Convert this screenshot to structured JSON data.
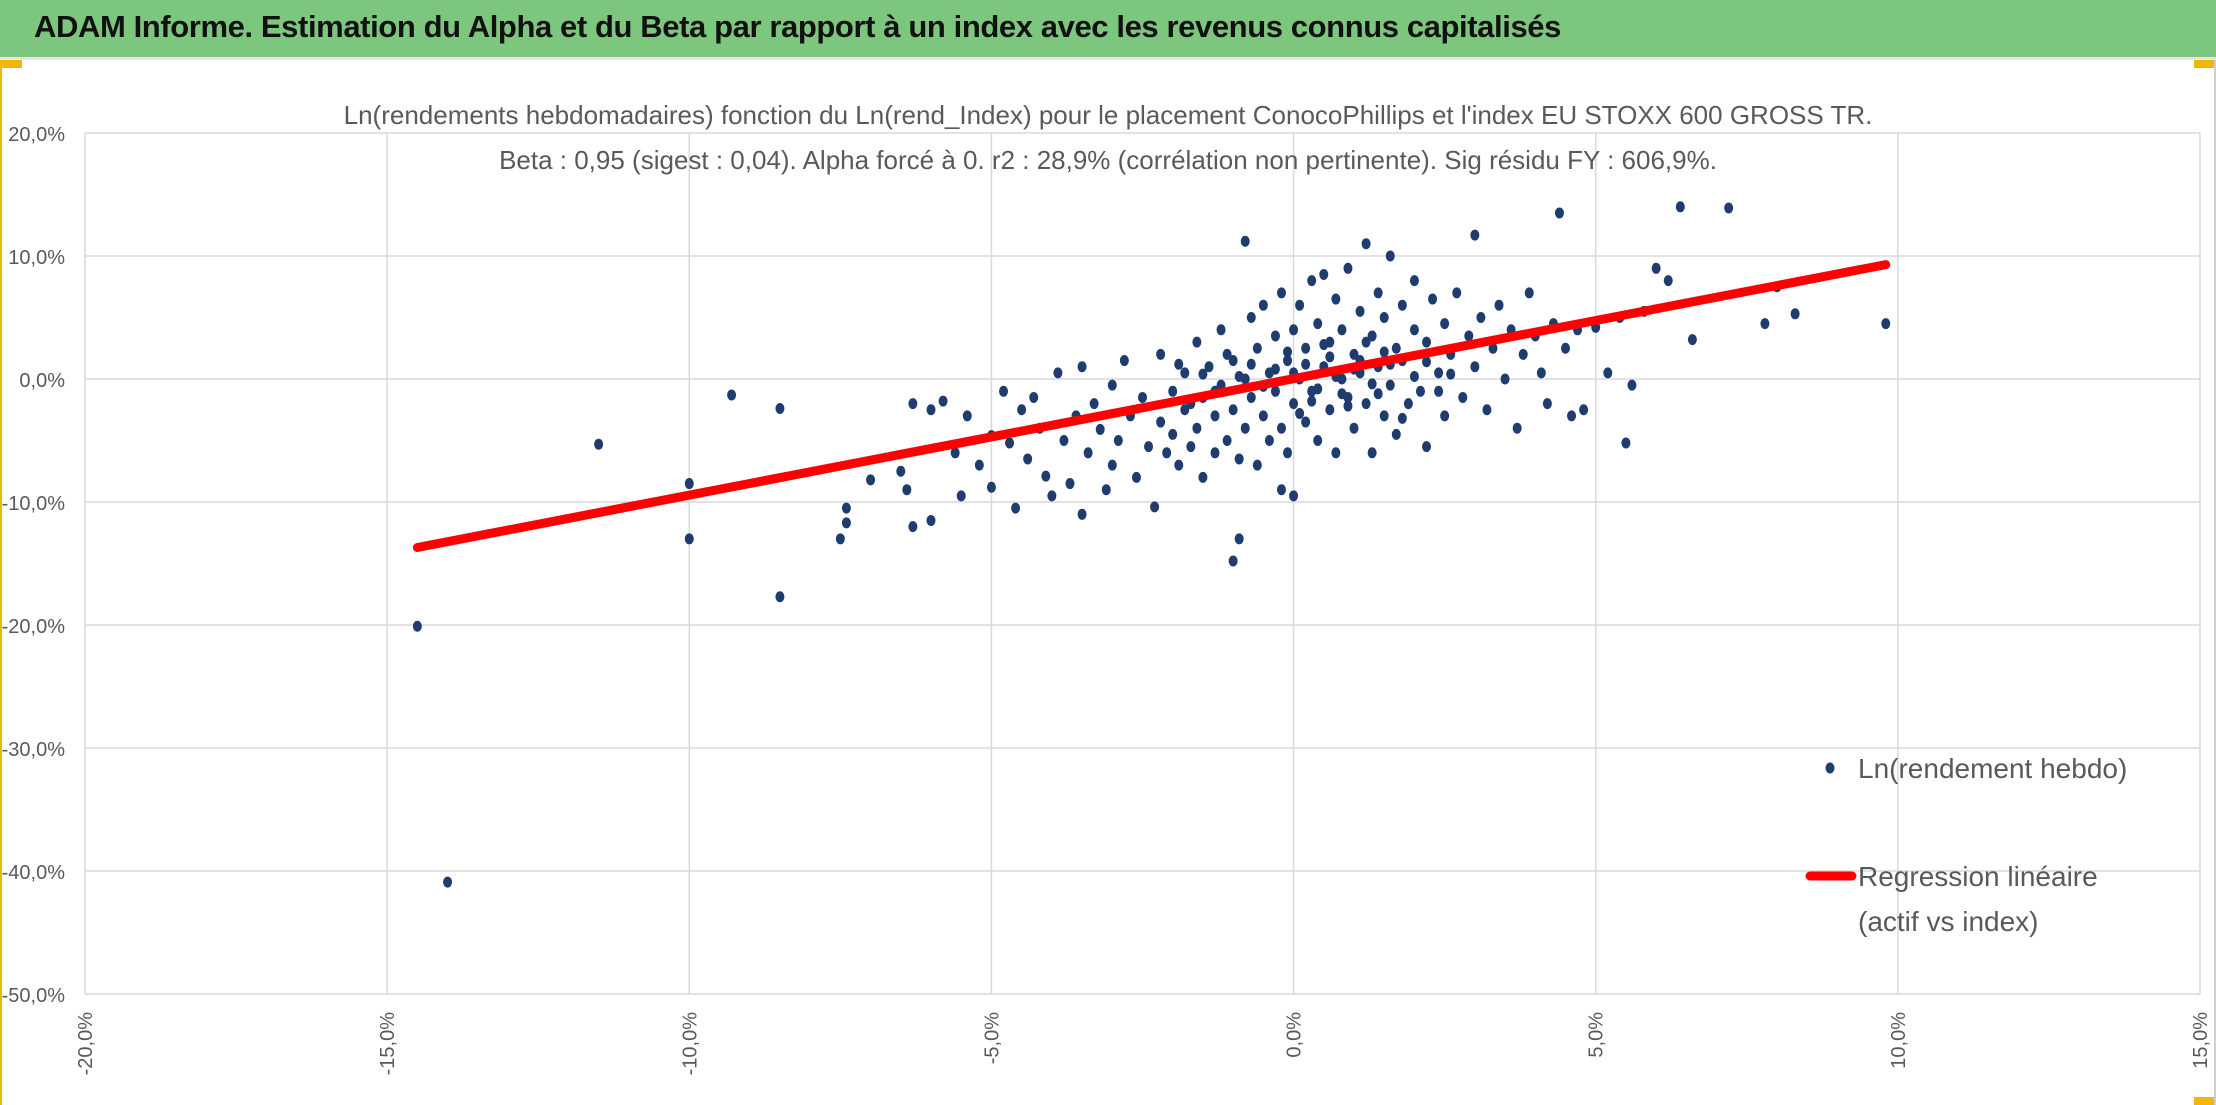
{
  "header": {
    "title": "ADAM Informe. Estimation du Alpha et du Beta par rapport à un index avec les revenus connus capitalisés"
  },
  "colors": {
    "banner": "#7dc67d",
    "accent": "#f2b705",
    "points": "#1f3c6e",
    "regression": "#ff0000",
    "grid": "#d9d9d9",
    "text": "#595959"
  },
  "chart_data": {
    "type": "scatter",
    "title": "Ln(rendements hebdomadaires) fonction du Ln(rend_Index) pour le placement ConocoPhillips et l'index EU STOXX 600 GROSS TR.",
    "subtitle": "Beta : 0,95 (sigest : 0,04). Alpha forcé à 0. r2 : 28,9% (corrélation non pertinente). Sig résidu FY : 606,9%.",
    "xlabel": "",
    "ylabel": "",
    "xlim": [
      -0.2,
      0.15
    ],
    "ylim": [
      -0.5,
      0.2
    ],
    "x_ticks": [
      -0.2,
      -0.15,
      -0.1,
      -0.05,
      0.0,
      0.05,
      0.1,
      0.15
    ],
    "x_tick_labels": [
      "-20,0%",
      "-15,0%",
      "-10,0%",
      "-5,0%",
      "0,0%",
      "5,0%",
      "10,0%",
      "15,0%"
    ],
    "y_ticks": [
      0.2,
      0.1,
      0.0,
      -0.1,
      -0.2,
      -0.3,
      -0.4,
      -0.5
    ],
    "y_tick_labels": [
      "20,0%",
      "10,0%",
      "0,0%",
      "-10,0%",
      "-20,0%",
      "-30,0%",
      "-40,0%",
      "-50,0%"
    ],
    "grid": true,
    "legend_position": "right",
    "series": [
      {
        "name": "Ln(rendement hebdo)",
        "kind": "points",
        "points": [
          [
            -0.145,
            -0.201
          ],
          [
            -0.14,
            -0.409
          ],
          [
            -0.115,
            -0.053
          ],
          [
            -0.1,
            -0.085
          ],
          [
            -0.1,
            -0.13
          ],
          [
            -0.093,
            -0.013
          ],
          [
            -0.085,
            -0.024
          ],
          [
            -0.085,
            -0.177
          ],
          [
            -0.075,
            -0.13
          ],
          [
            -0.074,
            -0.105
          ],
          [
            -0.074,
            -0.117
          ],
          [
            -0.07,
            -0.082
          ],
          [
            -0.065,
            -0.075
          ],
          [
            -0.064,
            -0.09
          ],
          [
            -0.063,
            -0.12
          ],
          [
            -0.063,
            -0.02
          ],
          [
            -0.06,
            -0.025
          ],
          [
            -0.06,
            -0.115
          ],
          [
            -0.058,
            -0.018
          ],
          [
            -0.056,
            -0.06
          ],
          [
            -0.055,
            -0.095
          ],
          [
            -0.054,
            -0.03
          ],
          [
            -0.052,
            -0.07
          ],
          [
            -0.05,
            -0.046
          ],
          [
            -0.05,
            -0.088
          ],
          [
            -0.048,
            -0.01
          ],
          [
            -0.047,
            -0.052
          ],
          [
            -0.046,
            -0.105
          ],
          [
            -0.045,
            -0.025
          ],
          [
            -0.044,
            -0.065
          ],
          [
            -0.043,
            -0.015
          ],
          [
            -0.042,
            -0.04
          ],
          [
            -0.041,
            -0.079
          ],
          [
            -0.04,
            -0.095
          ],
          [
            -0.039,
            0.005
          ],
          [
            -0.038,
            -0.05
          ],
          [
            -0.037,
            -0.085
          ],
          [
            -0.036,
            -0.03
          ],
          [
            -0.035,
            0.01
          ],
          [
            -0.035,
            -0.11
          ],
          [
            -0.034,
            -0.06
          ],
          [
            -0.033,
            -0.02
          ],
          [
            -0.032,
            -0.041
          ],
          [
            -0.031,
            -0.09
          ],
          [
            -0.03,
            -0.005
          ],
          [
            -0.03,
            -0.07
          ],
          [
            -0.029,
            -0.05
          ],
          [
            -0.028,
            0.015
          ],
          [
            -0.027,
            -0.03
          ],
          [
            -0.026,
            -0.08
          ],
          [
            -0.025,
            -0.015
          ],
          [
            -0.024,
            -0.055
          ],
          [
            -0.023,
            -0.104
          ],
          [
            -0.022,
            0.02
          ],
          [
            -0.022,
            -0.035
          ],
          [
            -0.021,
            -0.06
          ],
          [
            -0.02,
            -0.01
          ],
          [
            -0.02,
            -0.045
          ],
          [
            -0.019,
            -0.07
          ],
          [
            -0.018,
            0.005
          ],
          [
            -0.018,
            -0.025
          ],
          [
            -0.017,
            -0.055
          ],
          [
            -0.016,
            0.03
          ],
          [
            -0.016,
            -0.04
          ],
          [
            -0.015,
            -0.015
          ],
          [
            -0.015,
            -0.08
          ],
          [
            -0.014,
            0.01
          ],
          [
            -0.013,
            -0.03
          ],
          [
            -0.013,
            -0.06
          ],
          [
            -0.012,
            0.04
          ],
          [
            -0.012,
            -0.005
          ],
          [
            -0.011,
            -0.05
          ],
          [
            -0.01,
            -0.148
          ],
          [
            -0.01,
            0.015
          ],
          [
            -0.01,
            -0.025
          ],
          [
            -0.009,
            -0.13
          ],
          [
            -0.009,
            -0.065
          ],
          [
            -0.008,
            0.112
          ],
          [
            -0.008,
            0.0
          ],
          [
            -0.008,
            -0.04
          ],
          [
            -0.007,
            0.05
          ],
          [
            -0.007,
            -0.015
          ],
          [
            -0.006,
            0.025
          ],
          [
            -0.006,
            -0.07
          ],
          [
            -0.005,
            -0.03
          ],
          [
            -0.005,
            0.06
          ],
          [
            -0.004,
            0.005
          ],
          [
            -0.004,
            -0.05
          ],
          [
            -0.003,
            0.035
          ],
          [
            -0.003,
            -0.01
          ],
          [
            -0.002,
            -0.09
          ],
          [
            -0.002,
            0.07
          ],
          [
            -0.002,
            -0.04
          ],
          [
            -0.001,
            0.015
          ],
          [
            -0.001,
            -0.06
          ],
          [
            0.0,
            0.04
          ],
          [
            0.0,
            -0.02
          ],
          [
            0.0,
            -0.095
          ],
          [
            0.001,
            0.06
          ],
          [
            0.001,
            0.0
          ],
          [
            0.002,
            -0.035
          ],
          [
            0.002,
            0.025
          ],
          [
            0.003,
            0.08
          ],
          [
            0.003,
            -0.01
          ],
          [
            0.004,
            0.045
          ],
          [
            0.004,
            -0.05
          ],
          [
            0.005,
            0.01
          ],
          [
            0.005,
            0.085
          ],
          [
            0.006,
            -0.025
          ],
          [
            0.006,
            0.03
          ],
          [
            0.007,
            0.065
          ],
          [
            0.007,
            -0.06
          ],
          [
            0.008,
            0.0
          ],
          [
            0.008,
            0.04
          ],
          [
            0.009,
            -0.015
          ],
          [
            0.009,
            0.09
          ],
          [
            0.01,
            0.02
          ],
          [
            0.01,
            -0.04
          ],
          [
            0.011,
            0.055
          ],
          [
            0.011,
            0.005
          ],
          [
            0.012,
            0.11
          ],
          [
            0.012,
            -0.02
          ],
          [
            0.013,
            0.035
          ],
          [
            0.013,
            -0.06
          ],
          [
            0.014,
            0.07
          ],
          [
            0.014,
            0.01
          ],
          [
            0.015,
            -0.03
          ],
          [
            0.015,
            0.05
          ],
          [
            0.016,
            0.1
          ],
          [
            0.016,
            -0.005
          ],
          [
            0.017,
            0.025
          ],
          [
            0.017,
            -0.045
          ],
          [
            0.018,
            0.06
          ],
          [
            0.018,
            0.015
          ],
          [
            0.019,
            -0.02
          ],
          [
            0.02,
            0.04
          ],
          [
            0.02,
            0.08
          ],
          [
            0.021,
            -0.01
          ],
          [
            0.022,
            0.03
          ],
          [
            0.022,
            -0.055
          ],
          [
            0.023,
            0.065
          ],
          [
            0.024,
            0.005
          ],
          [
            0.025,
            0.045
          ],
          [
            0.025,
            -0.03
          ],
          [
            0.026,
            0.02
          ],
          [
            0.027,
            0.07
          ],
          [
            0.028,
            -0.015
          ],
          [
            0.029,
            0.035
          ],
          [
            0.03,
            0.117
          ],
          [
            0.03,
            0.01
          ],
          [
            0.031,
            0.05
          ],
          [
            0.032,
            -0.025
          ],
          [
            0.033,
            0.025
          ],
          [
            0.034,
            0.06
          ],
          [
            0.035,
            0.0
          ],
          [
            0.036,
            0.04
          ],
          [
            0.037,
            -0.04
          ],
          [
            0.038,
            0.02
          ],
          [
            0.039,
            0.07
          ],
          [
            0.04,
            0.035
          ],
          [
            0.041,
            0.005
          ],
          [
            0.042,
            -0.02
          ],
          [
            0.043,
            0.045
          ],
          [
            0.044,
            0.135
          ],
          [
            0.045,
            0.025
          ],
          [
            0.046,
            -0.03
          ],
          [
            0.047,
            0.04
          ],
          [
            0.048,
            -0.025
          ],
          [
            0.05,
            0.042
          ],
          [
            0.052,
            0.005
          ],
          [
            0.054,
            0.05
          ],
          [
            0.055,
            -0.052
          ],
          [
            0.056,
            -0.005
          ],
          [
            0.058,
            0.055
          ],
          [
            0.06,
            0.09
          ],
          [
            0.062,
            0.08
          ],
          [
            0.064,
            0.14
          ],
          [
            0.066,
            0.032
          ],
          [
            0.072,
            0.139
          ],
          [
            0.078,
            0.045
          ],
          [
            0.08,
            0.075
          ],
          [
            0.083,
            0.053
          ],
          [
            0.098,
            0.045
          ],
          [
            0.0,
            0.005
          ],
          [
            0.002,
            0.012
          ],
          [
            0.004,
            -0.008
          ],
          [
            0.006,
            0.018
          ],
          [
            0.008,
            -0.012
          ],
          [
            0.01,
            0.008
          ],
          [
            -0.001,
            0.022
          ],
          [
            0.003,
            -0.018
          ],
          [
            0.005,
            0.028
          ],
          [
            0.007,
            0.002
          ],
          [
            0.009,
            -0.022
          ],
          [
            0.011,
            0.015
          ],
          [
            0.013,
            -0.004
          ],
          [
            0.015,
            0.022
          ],
          [
            -0.003,
            0.008
          ],
          [
            -0.005,
            -0.006
          ],
          [
            -0.007,
            0.012
          ],
          [
            0.001,
            -0.028
          ],
          [
            0.012,
            0.03
          ],
          [
            0.014,
            -0.012
          ],
          [
            0.016,
            0.012
          ],
          [
            0.018,
            -0.032
          ],
          [
            0.02,
            0.002
          ],
          [
            0.022,
            0.014
          ],
          [
            0.024,
            -0.01
          ],
          [
            0.026,
            0.004
          ],
          [
            -0.009,
            0.002
          ],
          [
            -0.011,
            0.02
          ],
          [
            -0.013,
            -0.01
          ],
          [
            -0.015,
            0.004
          ],
          [
            -0.017,
            -0.02
          ],
          [
            -0.019,
            0.012
          ]
        ]
      },
      {
        "name": "Regression linéaire (actif vs index)",
        "name_lines": [
          "Regression linéaire",
          "(actif vs index)"
        ],
        "kind": "line",
        "x": [
          -0.145,
          0.098
        ],
        "y": [
          -0.137,
          0.093
        ]
      }
    ]
  }
}
